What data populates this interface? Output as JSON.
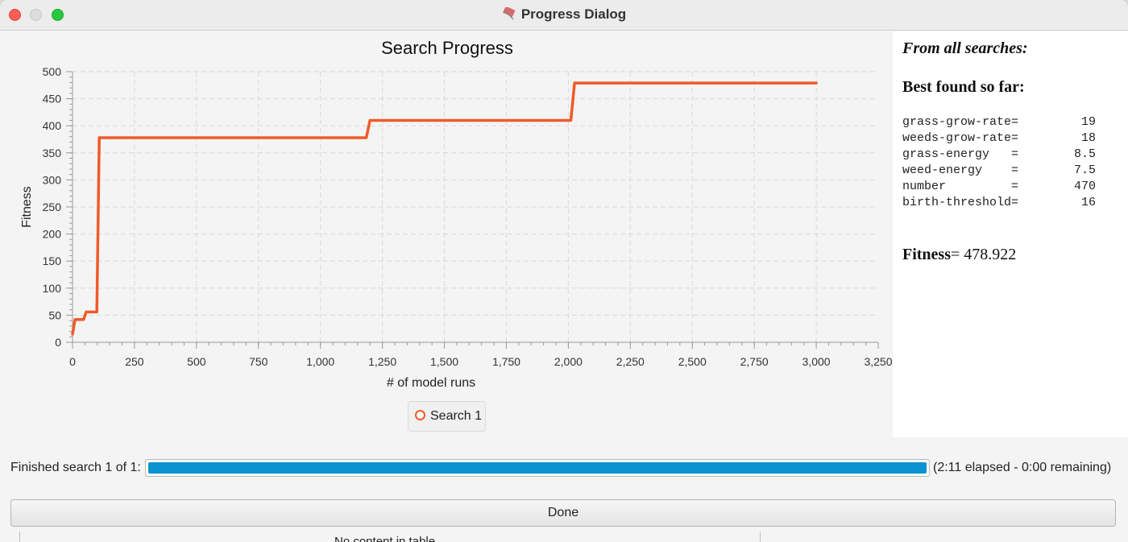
{
  "window": {
    "title": "Progress Dialog",
    "app_icon": "flag-icon"
  },
  "chart_data": {
    "type": "line",
    "title": "Search Progress",
    "xlabel": "# of model runs",
    "ylabel": "Fitness",
    "xlim": [
      0,
      3250
    ],
    "ylim": [
      0,
      500
    ],
    "x_ticks": [
      "0",
      "250",
      "500",
      "750",
      "1,000",
      "1,250",
      "1,500",
      "1,750",
      "2,000",
      "2,250",
      "2,500",
      "2,750",
      "3,000",
      "3,250"
    ],
    "y_ticks": [
      "0",
      "50",
      "100",
      "150",
      "200",
      "250",
      "300",
      "350",
      "400",
      "450",
      "500"
    ],
    "grid": true,
    "legend_position": "bottom-center",
    "series": [
      {
        "name": "Search 1",
        "color": "#f05a28",
        "x": [
          0,
          10,
          20,
          45,
          55,
          98,
          108,
          1185,
          1200,
          2010,
          2025,
          3000
        ],
        "y": [
          15,
          42,
          42,
          42,
          56,
          56,
          378,
          378,
          410,
          410,
          479,
          479
        ]
      }
    ]
  },
  "results": {
    "heading": "From all searches:",
    "subheading": "Best found so far:",
    "params": [
      {
        "name": "grass-grow-rate=",
        "value": "19"
      },
      {
        "name": "weeds-grow-rate=",
        "value": "18"
      },
      {
        "name": "grass-energy   =",
        "value": "8.5"
      },
      {
        "name": "weed-energy    =",
        "value": "7.5"
      },
      {
        "name": "number         =",
        "value": "470"
      },
      {
        "name": "birth-threshold=",
        "value": "16"
      }
    ],
    "fitness_label": "Fitness",
    "fitness_value": "= 478.922"
  },
  "progress": {
    "label": "Finished search 1 of 1:",
    "fraction": 1.0,
    "status": "(2:11 elapsed - 0:00 remaining)"
  },
  "buttons": {
    "done": "Done"
  },
  "background_window": {
    "table_placeholder": "No content in table"
  }
}
